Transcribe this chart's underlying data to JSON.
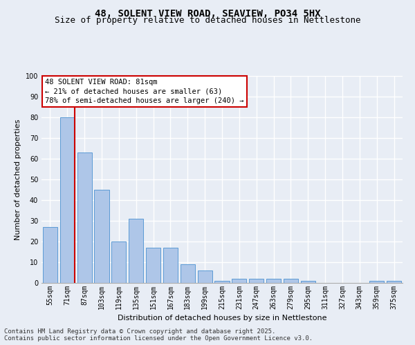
{
  "title_line1": "48, SOLENT VIEW ROAD, SEAVIEW, PO34 5HX",
  "title_line2": "Size of property relative to detached houses in Nettlestone",
  "xlabel": "Distribution of detached houses by size in Nettlestone",
  "ylabel": "Number of detached properties",
  "categories": [
    "55sqm",
    "71sqm",
    "87sqm",
    "103sqm",
    "119sqm",
    "135sqm",
    "151sqm",
    "167sqm",
    "183sqm",
    "199sqm",
    "215sqm",
    "231sqm",
    "247sqm",
    "263sqm",
    "279sqm",
    "295sqm",
    "311sqm",
    "327sqm",
    "343sqm",
    "359sqm",
    "375sqm"
  ],
  "values": [
    27,
    80,
    63,
    45,
    20,
    31,
    17,
    17,
    9,
    6,
    1,
    2,
    2,
    2,
    2,
    1,
    0,
    0,
    0,
    1,
    1
  ],
  "bar_color": "#aec6e8",
  "bar_edge_color": "#5b9bd5",
  "vline_index": 1,
  "vline_color": "#cc0000",
  "annotation_text": "48 SOLENT VIEW ROAD: 81sqm\n← 21% of detached houses are smaller (63)\n78% of semi-detached houses are larger (240) →",
  "annotation_box_color": "white",
  "annotation_box_edge": "#cc0000",
  "ylim": [
    0,
    100
  ],
  "yticks": [
    0,
    10,
    20,
    30,
    40,
    50,
    60,
    70,
    80,
    90,
    100
  ],
  "background_color": "#e8edf5",
  "grid_color": "white",
  "footer_line1": "Contains HM Land Registry data © Crown copyright and database right 2025.",
  "footer_line2": "Contains public sector information licensed under the Open Government Licence v3.0.",
  "title_fontsize": 10,
  "subtitle_fontsize": 9,
  "axis_label_fontsize": 8,
  "tick_fontsize": 7,
  "annotation_fontsize": 7.5,
  "footer_fontsize": 6.5
}
